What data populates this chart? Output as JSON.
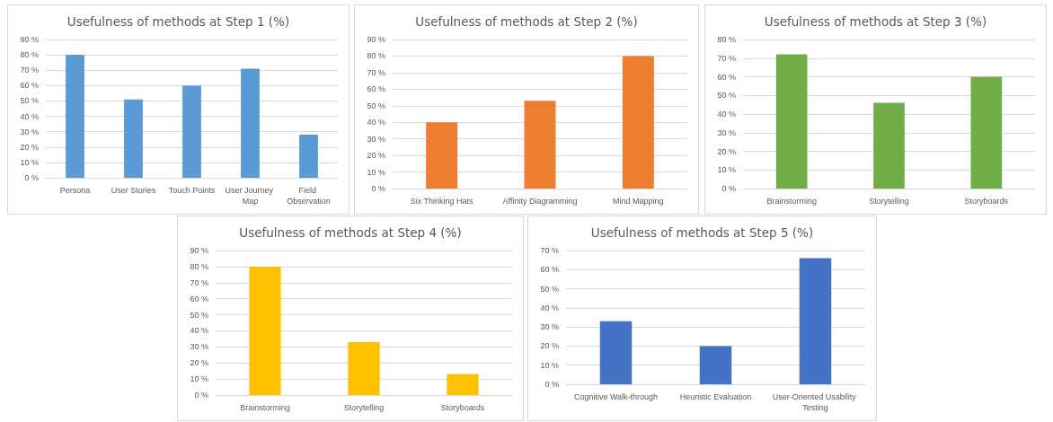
{
  "chart_data": [
    {
      "type": "bar",
      "title": "Usefulness of methods at Step 1 (%)",
      "categories": [
        "Persona",
        "User Stories",
        "Touch Points",
        "User Journey Map",
        "Field Observation"
      ],
      "values": [
        80,
        51,
        60,
        71,
        28
      ],
      "color": "#5b9bd5",
      "ylim": [
        0,
        90
      ],
      "yticks": [
        {
          "value": 0,
          "label": "0 %"
        },
        {
          "value": 10,
          "label": "10 %"
        },
        {
          "value": 20,
          "label": "20 %"
        },
        {
          "value": 30,
          "label": "30 %"
        },
        {
          "value": 40,
          "label": "40 %"
        },
        {
          "value": 50,
          "label": "50 %"
        },
        {
          "value": 60,
          "label": "60 %"
        },
        {
          "value": 70,
          "label": "70 %"
        },
        {
          "value": 80,
          "label": "80 %"
        },
        {
          "value": 90,
          "label": "90 %"
        }
      ],
      "grid": "y"
    },
    {
      "type": "bar",
      "title": "Usefulness of methods at Step 2 (%)",
      "categories": [
        "Six Thinking Hats",
        "Affinity Diagramming",
        "Mind Mapping"
      ],
      "values": [
        40,
        53,
        80
      ],
      "color": "#ed7d31",
      "ylim": [
        0,
        90
      ],
      "yticks": [
        {
          "value": 0,
          "label": "0 %"
        },
        {
          "value": 10,
          "label": "10 %"
        },
        {
          "value": 20,
          "label": "20 %"
        },
        {
          "value": 30,
          "label": "30 %"
        },
        {
          "value": 40,
          "label": "40 %"
        },
        {
          "value": 50,
          "label": "50 %"
        },
        {
          "value": 60,
          "label": "60 %"
        },
        {
          "value": 70,
          "label": "70 %"
        },
        {
          "value": 80,
          "label": "80 %"
        },
        {
          "value": 90,
          "label": "90 %"
        }
      ],
      "grid": "y"
    },
    {
      "type": "bar",
      "title": "Usefulness of methods at Step 3 (%)",
      "categories": [
        "Brainstorming",
        "Storytelling",
        "Storyboards"
      ],
      "values": [
        72,
        46,
        60
      ],
      "color": "#70ad47",
      "ylim": [
        0,
        80
      ],
      "yticks": [
        {
          "value": 0,
          "label": "0 %"
        },
        {
          "value": 10,
          "label": "10 %"
        },
        {
          "value": 20,
          "label": "20 %"
        },
        {
          "value": 30,
          "label": "30 %"
        },
        {
          "value": 40,
          "label": "40 %"
        },
        {
          "value": 50,
          "label": "50 %"
        },
        {
          "value": 60,
          "label": "60 %"
        },
        {
          "value": 70,
          "label": "70 %"
        },
        {
          "value": 80,
          "label": "80 %"
        }
      ],
      "grid": "y"
    },
    {
      "type": "bar",
      "title": "Usefulness of methods at Step 4 (%)",
      "categories": [
        "Brainstorming",
        "Storytelling",
        "Storyboards"
      ],
      "values": [
        80,
        33,
        13
      ],
      "color": "#ffc000",
      "ylim": [
        0,
        90
      ],
      "yticks": [
        {
          "value": 0,
          "label": "0 %"
        },
        {
          "value": 10,
          "label": "10 %"
        },
        {
          "value": 20,
          "label": "20 %"
        },
        {
          "value": 30,
          "label": "30 %"
        },
        {
          "value": 40,
          "label": "40 %"
        },
        {
          "value": 50,
          "label": "50 %"
        },
        {
          "value": 60,
          "label": "60 %"
        },
        {
          "value": 70,
          "label": "70 %"
        },
        {
          "value": 80,
          "label": "80 %"
        },
        {
          "value": 90,
          "label": "90 %"
        }
      ],
      "grid": "y"
    },
    {
      "type": "bar",
      "title": "Usefulness of methods at Step 5 (%)",
      "categories": [
        "Cognitive Walk-through",
        "Heuristic Evaluation",
        "User-Oriented Usability Testing"
      ],
      "values": [
        33,
        20,
        66
      ],
      "color": "#4472c4",
      "ylim": [
        0,
        70
      ],
      "yticks": [
        {
          "value": 0,
          "label": "0 %"
        },
        {
          "value": 10,
          "label": "10 %"
        },
        {
          "value": 20,
          "label": "20 %"
        },
        {
          "value": 30,
          "label": "30 %"
        },
        {
          "value": 40,
          "label": "40 %"
        },
        {
          "value": 50,
          "label": "50 %"
        },
        {
          "value": 60,
          "label": "60 %"
        },
        {
          "value": 70,
          "label": "70 %"
        }
      ],
      "grid": "y"
    }
  ]
}
